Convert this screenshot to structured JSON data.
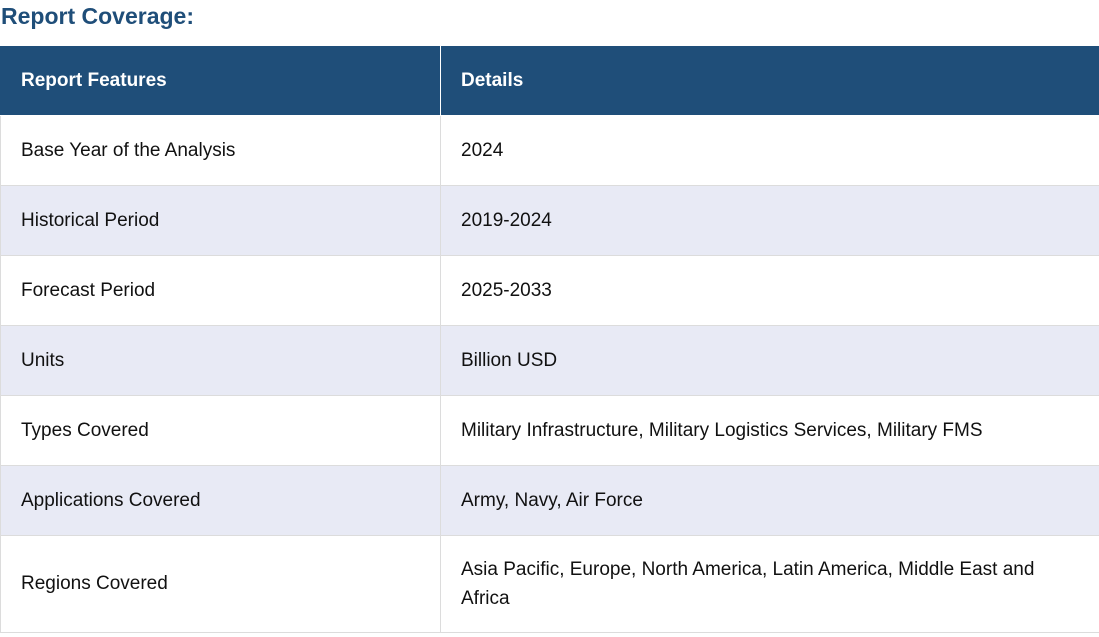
{
  "heading": "Report Coverage:",
  "table": {
    "headers": [
      "Report Features",
      "Details"
    ],
    "rows": [
      {
        "feature": "Base Year of the Analysis",
        "details": "2024"
      },
      {
        "feature": "Historical Period",
        "details": "2019-2024"
      },
      {
        "feature": "Forecast Period",
        "details": "2025-2033"
      },
      {
        "feature": "Units",
        "details": "Billion USD"
      },
      {
        "feature": "Types Covered",
        "details": "Military Infrastructure, Military Logistics Services, Military FMS"
      },
      {
        "feature": "Applications Covered",
        "details": "Army, Navy, Air Force"
      },
      {
        "feature": "Regions Covered",
        "details": " Asia Pacific, Europe, North America, Latin America, Middle East and Africa"
      }
    ]
  },
  "colors": {
    "heading": "#1f4e79",
    "header_bg": "#1f4e79",
    "stripe": "#e8eaf5"
  }
}
